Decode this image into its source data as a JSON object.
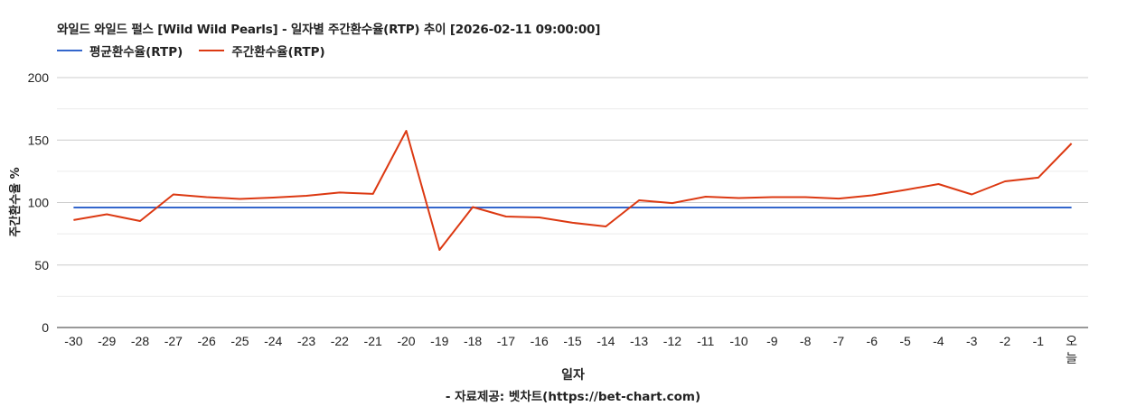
{
  "title": "와일드 와일드 펄스 [Wild Wild Pearls] - 일자별 주간환수율(RTP) 추이 [2026-02-11 09:00:00]",
  "legend": [
    {
      "label": "평균환수율(RTP)",
      "color": "#3366cc"
    },
    {
      "label": "주간환수율(RTP)",
      "color": "#dc3912"
    }
  ],
  "axis": {
    "y_title": "주간환수율 %",
    "x_title": "일자",
    "source": "- 자료제공: 벳차트(https://bet-chart.com)"
  },
  "chart_data": {
    "type": "line",
    "title": "와일드 와일드 펄스 [Wild Wild Pearls] - 일자별 주간환수율(RTP) 추이 [2026-02-11 09:00:00]",
    "xlabel": "일자",
    "ylabel": "주간환수율 %",
    "ylim": [
      0,
      200
    ],
    "yticks": [
      0,
      50,
      100,
      150,
      200
    ],
    "grid": true,
    "legend_position": "top",
    "categories": [
      "-30",
      "-29",
      "-28",
      "-27",
      "-26",
      "-25",
      "-24",
      "-23",
      "-22",
      "-21",
      "-20",
      "-19",
      "-18",
      "-17",
      "-16",
      "-15",
      "-14",
      "-13",
      "-12",
      "-11",
      "-10",
      "-9",
      "-8",
      "-7",
      "-6",
      "-5",
      "-4",
      "-3",
      "-2",
      "-1",
      "오늘"
    ],
    "series": [
      {
        "name": "평균환수율(RTP)",
        "color": "#3366cc",
        "values": [
          96,
          96,
          96,
          96,
          96,
          96,
          96,
          96,
          96,
          96,
          96,
          96,
          96,
          96,
          96,
          96,
          96,
          96,
          96,
          96,
          96,
          96,
          96,
          96,
          96,
          96,
          96,
          96,
          96,
          96,
          96
        ]
      },
      {
        "name": "주간환수율(RTP)",
        "color": "#dc3912",
        "values": [
          86,
          90.6,
          85.2,
          106.5,
          104.3,
          102.9,
          104,
          105.4,
          108,
          106.9,
          157.4,
          62.1,
          96.4,
          88.8,
          88.1,
          83.8,
          80.9,
          101.8,
          99.6,
          104.7,
          103.6,
          104.3,
          104.3,
          103.2,
          105.8,
          110.1,
          114.8,
          106.5,
          117,
          119.9,
          147.3
        ]
      }
    ]
  }
}
